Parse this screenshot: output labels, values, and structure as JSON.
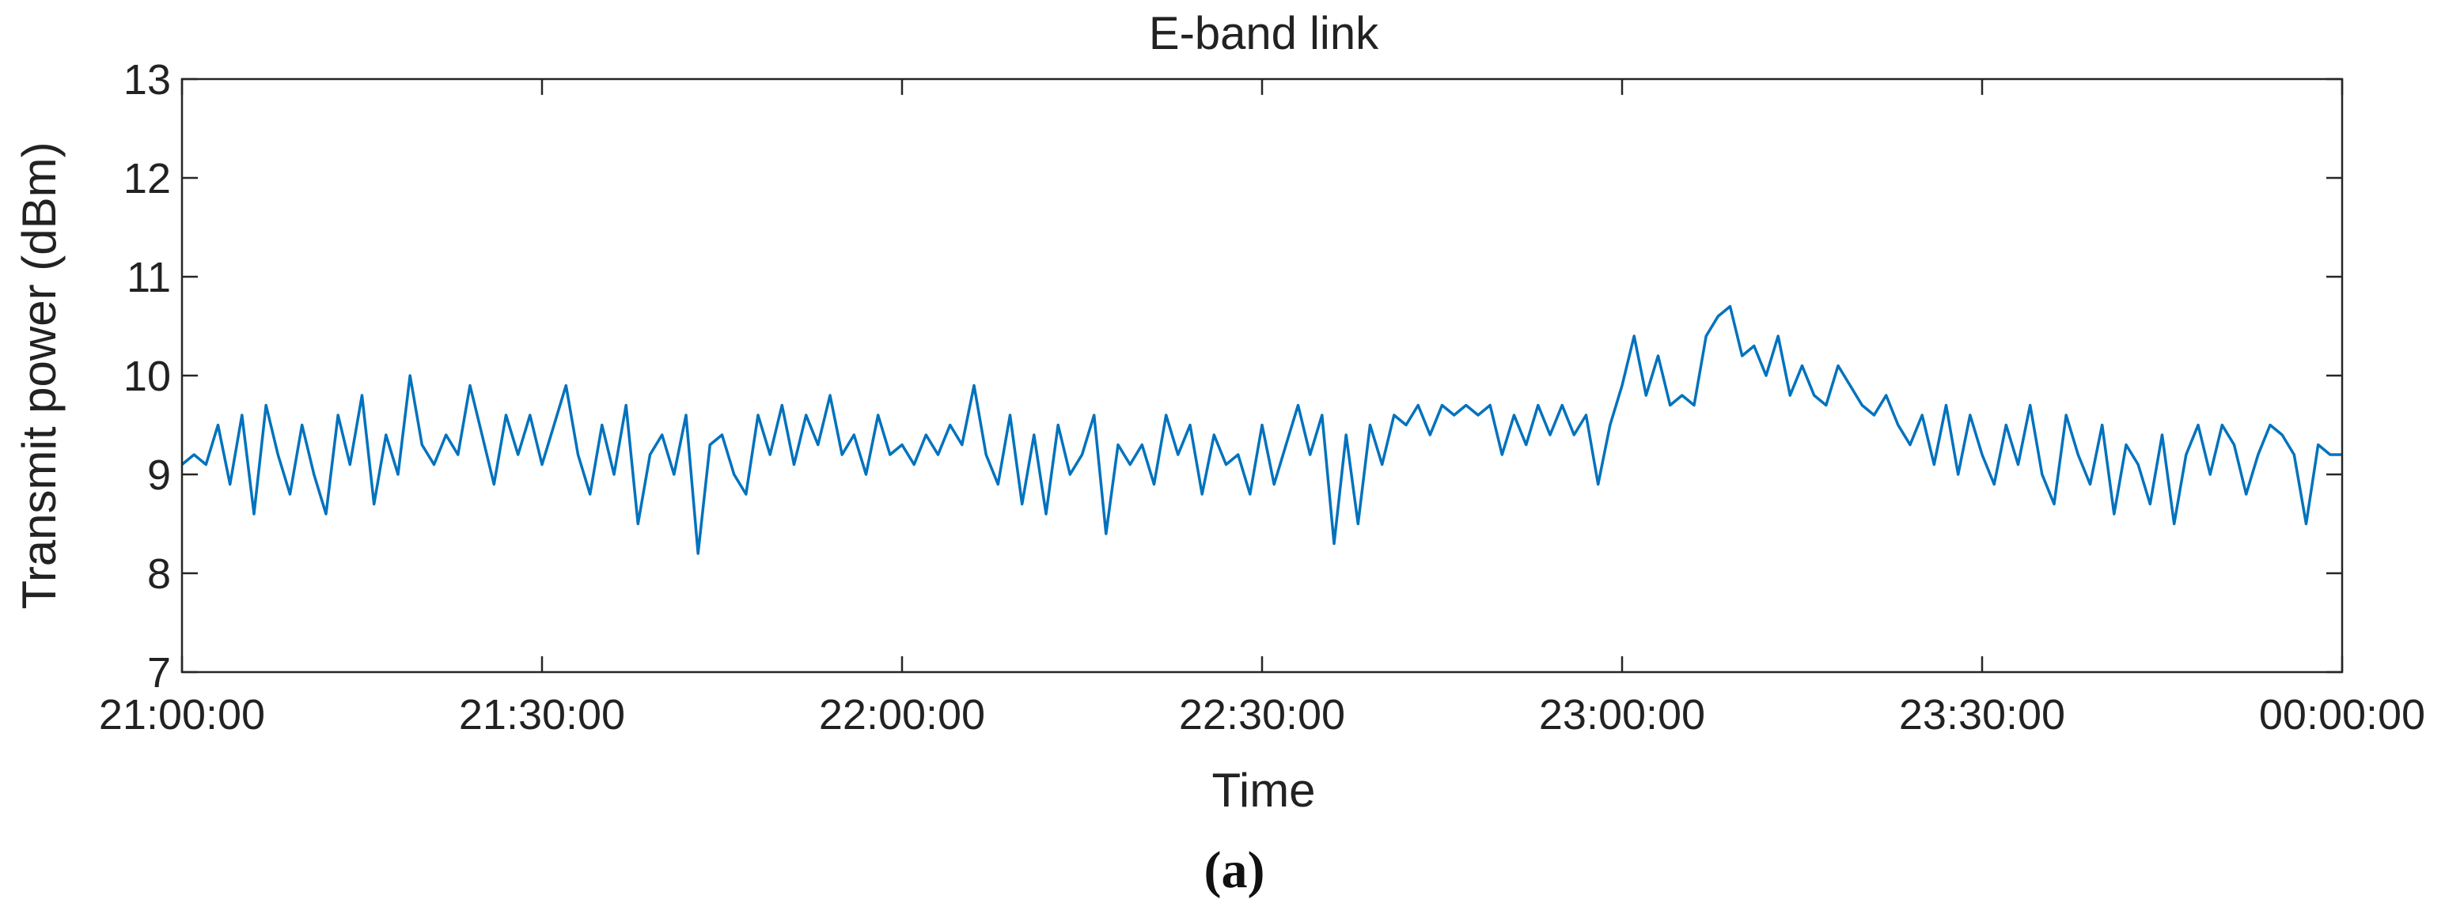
{
  "chart_data": {
    "type": "line",
    "title": "E-band link",
    "xlabel": "Time",
    "ylabel": "Transmit power (dBm)",
    "panel_label": "(a)",
    "x_unit": "HH:MM:SS from 21:00:00 to 00:00:00 (next day)",
    "xlim": [
      "21:00:00",
      "00:00:00"
    ],
    "ylim": [
      7,
      13
    ],
    "xticks": [
      "21:00:00",
      "21:30:00",
      "22:00:00",
      "22:30:00",
      "23:00:00",
      "23:30:00",
      "00:00:00"
    ],
    "yticks": [
      "7",
      "8",
      "9",
      "10",
      "11",
      "12",
      "13"
    ],
    "grid": false,
    "line_color": "#0072BD",
    "series": [
      {
        "points": [
          [
            "21:00:00",
            9.1
          ],
          [
            "21:01:00",
            9.2
          ],
          [
            "21:02:00",
            9.1
          ],
          [
            "21:03:00",
            9.5
          ],
          [
            "21:04:00",
            8.9
          ],
          [
            "21:05:00",
            9.6
          ],
          [
            "21:06:00",
            8.6
          ],
          [
            "21:07:00",
            9.7
          ],
          [
            "21:08:00",
            9.2
          ],
          [
            "21:09:00",
            8.8
          ],
          [
            "21:10:00",
            9.5
          ],
          [
            "21:11:00",
            9.0
          ],
          [
            "21:12:00",
            8.6
          ],
          [
            "21:13:00",
            9.6
          ],
          [
            "21:14:00",
            9.1
          ],
          [
            "21:15:00",
            9.8
          ],
          [
            "21:16:00",
            8.7
          ],
          [
            "21:17:00",
            9.4
          ],
          [
            "21:18:00",
            9.0
          ],
          [
            "21:19:00",
            10.0
          ],
          [
            "21:20:00",
            9.3
          ],
          [
            "21:21:00",
            9.1
          ],
          [
            "21:22:00",
            9.4
          ],
          [
            "21:23:00",
            9.2
          ],
          [
            "21:24:00",
            9.9
          ],
          [
            "21:25:00",
            9.4
          ],
          [
            "21:26:00",
            8.9
          ],
          [
            "21:27:00",
            9.6
          ],
          [
            "21:28:00",
            9.2
          ],
          [
            "21:29:00",
            9.6
          ],
          [
            "21:30:00",
            9.1
          ],
          [
            "21:31:00",
            9.5
          ],
          [
            "21:32:00",
            9.9
          ],
          [
            "21:33:00",
            9.2
          ],
          [
            "21:34:00",
            8.8
          ],
          [
            "21:35:00",
            9.5
          ],
          [
            "21:36:00",
            9.0
          ],
          [
            "21:37:00",
            9.7
          ],
          [
            "21:38:00",
            8.5
          ],
          [
            "21:39:00",
            9.2
          ],
          [
            "21:40:00",
            9.4
          ],
          [
            "21:41:00",
            9.0
          ],
          [
            "21:42:00",
            9.6
          ],
          [
            "21:43:00",
            8.2
          ],
          [
            "21:44:00",
            9.3
          ],
          [
            "21:45:00",
            9.4
          ],
          [
            "21:46:00",
            9.0
          ],
          [
            "21:47:00",
            8.8
          ],
          [
            "21:48:00",
            9.6
          ],
          [
            "21:49:00",
            9.2
          ],
          [
            "21:50:00",
            9.7
          ],
          [
            "21:51:00",
            9.1
          ],
          [
            "21:52:00",
            9.6
          ],
          [
            "21:53:00",
            9.3
          ],
          [
            "21:54:00",
            9.8
          ],
          [
            "21:55:00",
            9.2
          ],
          [
            "21:56:00",
            9.4
          ],
          [
            "21:57:00",
            9.0
          ],
          [
            "21:58:00",
            9.6
          ],
          [
            "21:59:00",
            9.2
          ],
          [
            "22:00:00",
            9.3
          ],
          [
            "22:01:00",
            9.1
          ],
          [
            "22:02:00",
            9.4
          ],
          [
            "22:03:00",
            9.2
          ],
          [
            "22:04:00",
            9.5
          ],
          [
            "22:05:00",
            9.3
          ],
          [
            "22:06:00",
            9.9
          ],
          [
            "22:07:00",
            9.2
          ],
          [
            "22:08:00",
            8.9
          ],
          [
            "22:09:00",
            9.6
          ],
          [
            "22:10:00",
            8.7
          ],
          [
            "22:11:00",
            9.4
          ],
          [
            "22:12:00",
            8.6
          ],
          [
            "22:13:00",
            9.5
          ],
          [
            "22:14:00",
            9.0
          ],
          [
            "22:15:00",
            9.2
          ],
          [
            "22:16:00",
            9.6
          ],
          [
            "22:17:00",
            8.4
          ],
          [
            "22:18:00",
            9.3
          ],
          [
            "22:19:00",
            9.1
          ],
          [
            "22:20:00",
            9.3
          ],
          [
            "22:21:00",
            8.9
          ],
          [
            "22:22:00",
            9.6
          ],
          [
            "22:23:00",
            9.2
          ],
          [
            "22:24:00",
            9.5
          ],
          [
            "22:25:00",
            8.8
          ],
          [
            "22:26:00",
            9.4
          ],
          [
            "22:27:00",
            9.1
          ],
          [
            "22:28:00",
            9.2
          ],
          [
            "22:29:00",
            8.8
          ],
          [
            "22:30:00",
            9.5
          ],
          [
            "22:31:00",
            8.9
          ],
          [
            "22:32:00",
            9.3
          ],
          [
            "22:33:00",
            9.7
          ],
          [
            "22:34:00",
            9.2
          ],
          [
            "22:35:00",
            9.6
          ],
          [
            "22:36:00",
            8.3
          ],
          [
            "22:37:00",
            9.4
          ],
          [
            "22:38:00",
            8.5
          ],
          [
            "22:39:00",
            9.5
          ],
          [
            "22:40:00",
            9.1
          ],
          [
            "22:41:00",
            9.6
          ],
          [
            "22:42:00",
            9.5
          ],
          [
            "22:43:00",
            9.7
          ],
          [
            "22:44:00",
            9.4
          ],
          [
            "22:45:00",
            9.7
          ],
          [
            "22:46:00",
            9.6
          ],
          [
            "22:47:00",
            9.7
          ],
          [
            "22:48:00",
            9.6
          ],
          [
            "22:49:00",
            9.7
          ],
          [
            "22:50:00",
            9.2
          ],
          [
            "22:51:00",
            9.6
          ],
          [
            "22:52:00",
            9.3
          ],
          [
            "22:53:00",
            9.7
          ],
          [
            "22:54:00",
            9.4
          ],
          [
            "22:55:00",
            9.7
          ],
          [
            "22:56:00",
            9.4
          ],
          [
            "22:57:00",
            9.6
          ],
          [
            "22:58:00",
            8.9
          ],
          [
            "22:59:00",
            9.5
          ],
          [
            "23:00:00",
            9.9
          ],
          [
            "23:01:00",
            10.4
          ],
          [
            "23:02:00",
            9.8
          ],
          [
            "23:03:00",
            10.2
          ],
          [
            "23:04:00",
            9.7
          ],
          [
            "23:05:00",
            9.8
          ],
          [
            "23:06:00",
            9.7
          ],
          [
            "23:07:00",
            10.4
          ],
          [
            "23:08:00",
            10.6
          ],
          [
            "23:09:00",
            10.7
          ],
          [
            "23:10:00",
            10.2
          ],
          [
            "23:11:00",
            10.3
          ],
          [
            "23:12:00",
            10.0
          ],
          [
            "23:13:00",
            10.4
          ],
          [
            "23:14:00",
            9.8
          ],
          [
            "23:15:00",
            10.1
          ],
          [
            "23:16:00",
            9.8
          ],
          [
            "23:17:00",
            9.7
          ],
          [
            "23:18:00",
            10.1
          ],
          [
            "23:19:00",
            9.9
          ],
          [
            "23:20:00",
            9.7
          ],
          [
            "23:21:00",
            9.6
          ],
          [
            "23:22:00",
            9.8
          ],
          [
            "23:23:00",
            9.5
          ],
          [
            "23:24:00",
            9.3
          ],
          [
            "23:25:00",
            9.6
          ],
          [
            "23:26:00",
            9.1
          ],
          [
            "23:27:00",
            9.7
          ],
          [
            "23:28:00",
            9.0
          ],
          [
            "23:29:00",
            9.6
          ],
          [
            "23:30:00",
            9.2
          ],
          [
            "23:31:00",
            8.9
          ],
          [
            "23:32:00",
            9.5
          ],
          [
            "23:33:00",
            9.1
          ],
          [
            "23:34:00",
            9.7
          ],
          [
            "23:35:00",
            9.0
          ],
          [
            "23:36:00",
            8.7
          ],
          [
            "23:37:00",
            9.6
          ],
          [
            "23:38:00",
            9.2
          ],
          [
            "23:39:00",
            8.9
          ],
          [
            "23:40:00",
            9.5
          ],
          [
            "23:41:00",
            8.6
          ],
          [
            "23:42:00",
            9.3
          ],
          [
            "23:43:00",
            9.1
          ],
          [
            "23:44:00",
            8.7
          ],
          [
            "23:45:00",
            9.4
          ],
          [
            "23:46:00",
            8.5
          ],
          [
            "23:47:00",
            9.2
          ],
          [
            "23:48:00",
            9.5
          ],
          [
            "23:49:00",
            9.0
          ],
          [
            "23:50:00",
            9.5
          ],
          [
            "23:51:00",
            9.3
          ],
          [
            "23:52:00",
            8.8
          ],
          [
            "23:53:00",
            9.2
          ],
          [
            "23:54:00",
            9.5
          ],
          [
            "23:55:00",
            9.4
          ],
          [
            "23:56:00",
            9.2
          ],
          [
            "23:57:00",
            8.5
          ],
          [
            "23:58:00",
            9.3
          ],
          [
            "23:59:00",
            9.2
          ],
          [
            "00:00:00",
            9.2
          ]
        ]
      }
    ]
  }
}
